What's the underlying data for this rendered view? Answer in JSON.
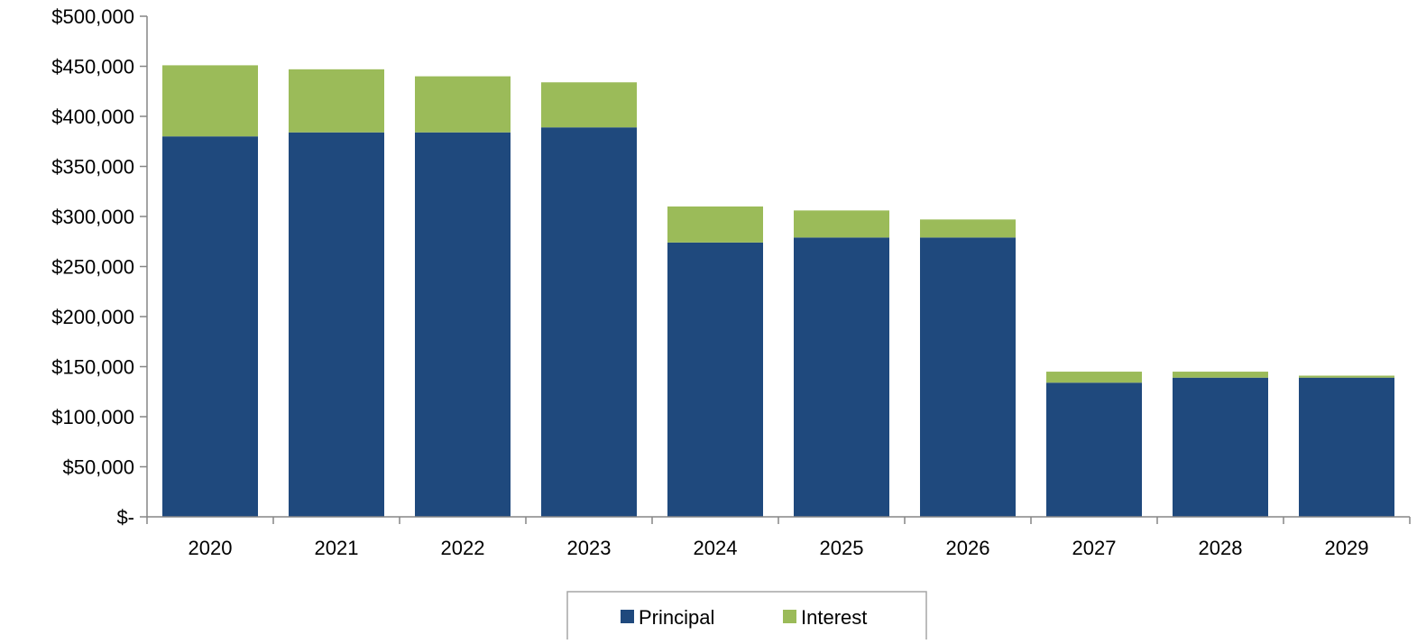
{
  "chart_data": {
    "type": "bar",
    "stacked": true,
    "title": "",
    "xlabel": "",
    "ylabel": "",
    "categories": [
      "2020",
      "2021",
      "2022",
      "2023",
      "2024",
      "2025",
      "2026",
      "2027",
      "2028",
      "2029"
    ],
    "series": [
      {
        "name": "Principal",
        "color": "#1F497D",
        "values": [
          380000,
          384000,
          384000,
          389000,
          274000,
          279000,
          279000,
          134000,
          139000,
          139000
        ]
      },
      {
        "name": "Interest",
        "color": "#9BBB59",
        "values": [
          71000,
          63000,
          56000,
          45000,
          36000,
          27000,
          18000,
          11000,
          6000,
          2000
        ]
      }
    ],
    "ylim": [
      0,
      500000
    ],
    "yticks": [
      0,
      50000,
      100000,
      150000,
      200000,
      250000,
      300000,
      350000,
      400000,
      450000,
      500000
    ],
    "ytick_labels": [
      "$-",
      "$50,000",
      "$100,000",
      "$150,000",
      "$200,000",
      "$250,000",
      "$300,000",
      "$350,000",
      "$400,000",
      "$450,000",
      "$500,000"
    ],
    "grid": false,
    "legend": {
      "position": "bottom",
      "entries": [
        "Principal",
        "Interest"
      ]
    },
    "axis_color": "#868686"
  }
}
